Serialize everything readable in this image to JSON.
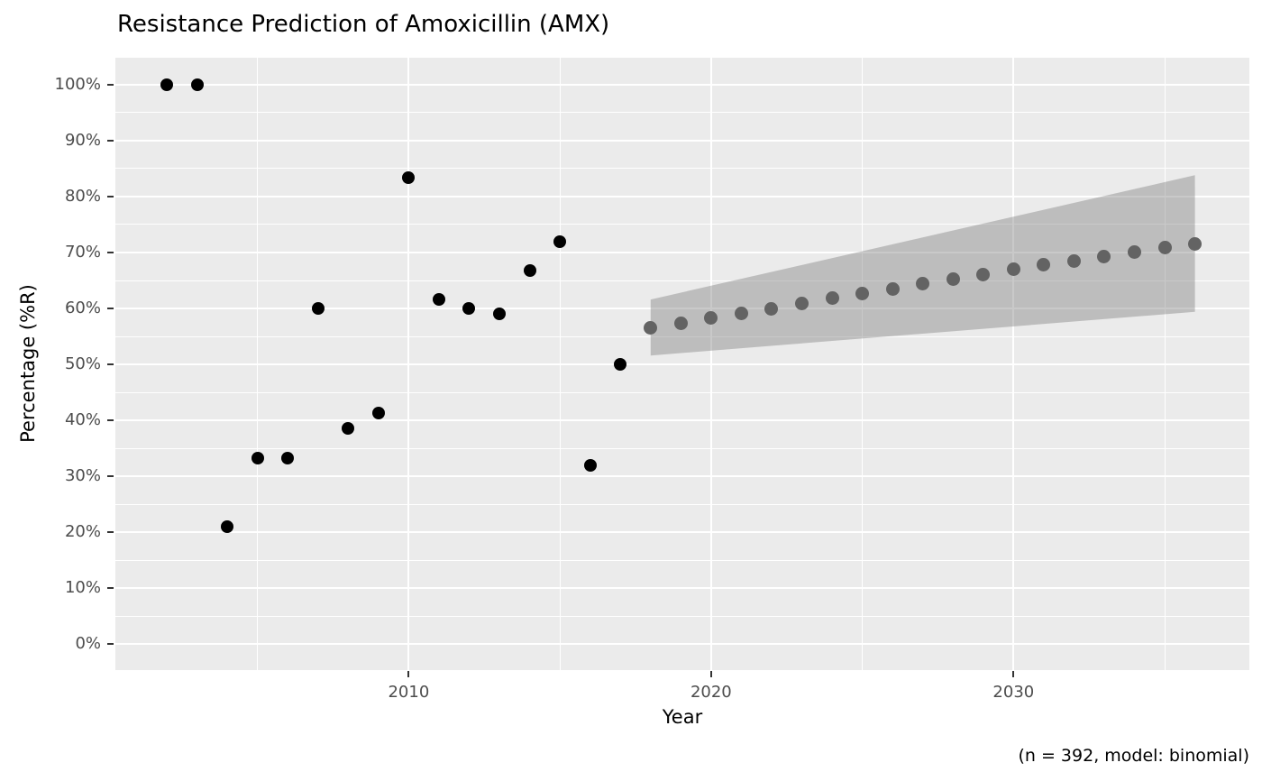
{
  "chart_data": {
    "type": "scatter",
    "title": "Resistance Prediction of Amoxicillin (AMX)",
    "xlabel": "Year",
    "ylabel": "Percentage (%R)",
    "caption": "(n = 392, model: binomial)",
    "x_domain": [
      2000.3,
      2037.8
    ],
    "y_domain": [
      -4.6,
      104.8
    ],
    "x_ticks": [
      {
        "v": 2010,
        "label": "2010"
      },
      {
        "v": 2020,
        "label": "2020"
      },
      {
        "v": 2030,
        "label": "2030"
      }
    ],
    "x_minor": [
      2005,
      2015,
      2025,
      2035
    ],
    "y_ticks": [
      {
        "v": 100,
        "label": "100%"
      },
      {
        "v": 90,
        "label": "90%"
      },
      {
        "v": 80,
        "label": "80%"
      },
      {
        "v": 70,
        "label": "70%"
      },
      {
        "v": 60,
        "label": "60%"
      },
      {
        "v": 50,
        "label": "50%"
      },
      {
        "v": 40,
        "label": "40%"
      },
      {
        "v": 30,
        "label": "30%"
      },
      {
        "v": 20,
        "label": "20%"
      },
      {
        "v": 10,
        "label": "10%"
      },
      {
        "v": 0,
        "label": "0%"
      }
    ],
    "y_minor": [
      5,
      15,
      25,
      35,
      45,
      55,
      65,
      75,
      85,
      95
    ],
    "grid": true,
    "legend": "none",
    "series": [
      {
        "name": "observed",
        "color": "#000000",
        "point_size": 14,
        "x": [
          2002,
          2003,
          2004,
          2005,
          2006,
          2007,
          2008,
          2009,
          2010,
          2011,
          2012,
          2013,
          2014,
          2015,
          2016,
          2017
        ],
        "y": [
          100,
          100,
          21,
          33.3,
          33.3,
          60,
          38.5,
          41.3,
          83.3,
          61.7,
          60,
          59,
          66.7,
          72,
          32,
          50
        ]
      },
      {
        "name": "predicted",
        "color": "#636363",
        "point_size": 15,
        "x": [
          2018,
          2019,
          2020,
          2021,
          2022,
          2023,
          2024,
          2025,
          2026,
          2027,
          2028,
          2029,
          2030,
          2031,
          2032,
          2033,
          2034,
          2035,
          2036
        ],
        "y": [
          56.5,
          57.4,
          58.3,
          59.2,
          60.0,
          60.9,
          61.8,
          62.6,
          63.5,
          64.4,
          65.2,
          66.1,
          67.0,
          67.8,
          68.5,
          69.3,
          70.1,
          70.9,
          71.6
        ]
      }
    ],
    "ribbon": {
      "name": "confidence-interval",
      "color": "rgba(127,127,127,0.42)",
      "x": [
        2018,
        2036
      ],
      "lower": [
        51.6,
        59.4
      ],
      "upper": [
        61.6,
        83.8
      ]
    },
    "panel_background": "#EBEBEB",
    "gridline_color": "#FFFFFF",
    "tick_label_color": "#4d4d4d",
    "tick_mark_color": "#333333"
  }
}
